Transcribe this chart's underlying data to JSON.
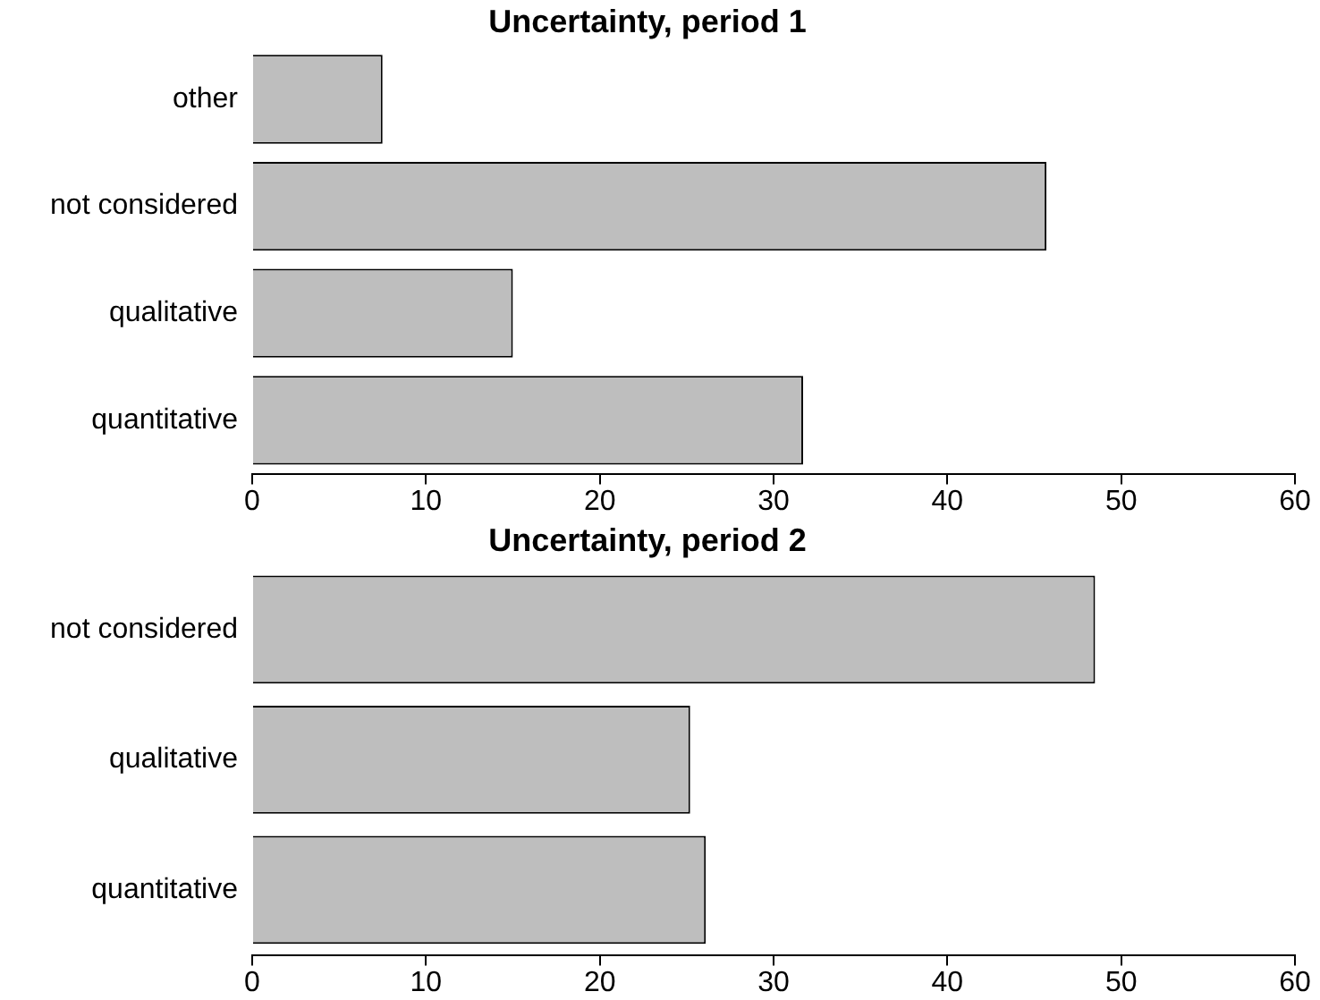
{
  "chart_data": [
    {
      "type": "bar",
      "orientation": "horizontal",
      "title": "Uncertainty, period 1",
      "categories": [
        "other",
        "not considered",
        "qualitative",
        "quantitative"
      ],
      "values": [
        7.5,
        45.7,
        15.0,
        31.7
      ],
      "color": "#bebebe",
      "xlim": [
        0,
        60
      ],
      "xticks": [
        0,
        10,
        20,
        30,
        40,
        50,
        60
      ],
      "grid": false,
      "legend": false
    },
    {
      "type": "bar",
      "orientation": "horizontal",
      "title": "Uncertainty, period 2",
      "categories": [
        "not considered",
        "qualitative",
        "quantitative"
      ],
      "values": [
        48.5,
        25.2,
        26.1
      ],
      "color": "#bebebe",
      "xlim": [
        0,
        60
      ],
      "xticks": [
        0,
        10,
        20,
        30,
        40,
        50,
        60
      ],
      "grid": false,
      "legend": false
    }
  ]
}
